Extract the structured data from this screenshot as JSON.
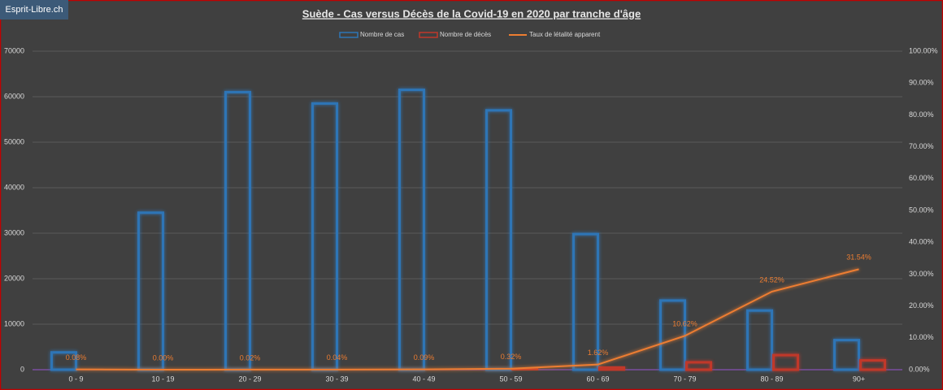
{
  "brand": "Esprit-Libre.ch",
  "chart_data": {
    "type": "bar",
    "title": "Suède - Cas versus Décès de la Covid-19 en 2020 par tranche d'âge",
    "categories": [
      "0 - 9",
      "10 - 19",
      "20 - 29",
      "30 - 39",
      "40 - 49",
      "50 - 59",
      "60 - 69",
      "70 - 79",
      "80 - 89",
      "90+"
    ],
    "series": [
      {
        "name": "Nombre de cas",
        "color": "#2e75b6",
        "values": [
          3800,
          34500,
          61000,
          58500,
          61500,
          57000,
          29800,
          15200,
          13000,
          6500
        ]
      },
      {
        "name": "Nombre de décès",
        "color": "#c0392b",
        "values": [
          3,
          1,
          12,
          25,
          55,
          180,
          480,
          1620,
          3200,
          2050
        ]
      },
      {
        "name": "Taux de létalité apparent",
        "type": "line",
        "axis": "y2",
        "color": "#ed7d31",
        "values": [
          0.08,
          0.0,
          0.02,
          0.04,
          0.09,
          0.32,
          1.62,
          10.62,
          24.52,
          31.54
        ],
        "value_labels": [
          "0.08%",
          "0.00%",
          "0.02%",
          "0.04%",
          "0.09%",
          "0.32%",
          "1.62%",
          "10.62%",
          "24.52%",
          "31.54%"
        ]
      }
    ],
    "ylim": [
      0,
      70000
    ],
    "yticks": [
      0,
      10000,
      20000,
      30000,
      40000,
      50000,
      60000,
      70000
    ],
    "y2lim": [
      0,
      100
    ],
    "y2ticks": [
      {
        "value": 0,
        "label": "0.00%"
      },
      {
        "value": 10,
        "label": "10.00%"
      },
      {
        "value": 20,
        "label": "20.00%"
      },
      {
        "value": 30,
        "label": "30.00%"
      },
      {
        "value": 40,
        "label": "40.00%"
      },
      {
        "value": 50,
        "label": "50.00%"
      },
      {
        "value": 60,
        "label": "60.00%"
      },
      {
        "value": 70,
        "label": "70.00%"
      },
      {
        "value": 80,
        "label": "80.00%"
      },
      {
        "value": 90,
        "label": "90.00%"
      },
      {
        "value": 100,
        "label": "100.00%"
      }
    ],
    "grid": true,
    "legend": "top"
  }
}
